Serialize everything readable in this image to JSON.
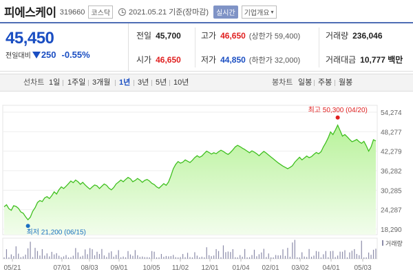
{
  "header": {
    "name": "피에스케이",
    "code": "319660",
    "market": "코스닥",
    "date": "2021.05.21 기준(장마감)",
    "realtime": "실시간",
    "company_info": "기업개요"
  },
  "quote": {
    "price": "45,450",
    "change_label": "전일대비",
    "change": "250",
    "change_pct": "-0.55%",
    "prev_close_label": "전일",
    "prev_close": "45,700",
    "high_label": "고가",
    "high": "46,650",
    "upper_limit": "(상한가 59,400)",
    "volume_label": "거래량",
    "volume": "236,046",
    "open_label": "시가",
    "open": "46,650",
    "low_label": "저가",
    "low": "44,850",
    "lower_limit": "(하한가 32,000)",
    "amount_label": "거래대금",
    "amount": "10,777 백만"
  },
  "tabs": {
    "line_chart_label": "선차트",
    "periods": [
      "1일",
      "1주일",
      "3개월",
      "1년",
      "3년",
      "5년",
      "10년"
    ],
    "active_period": "1년",
    "candle_label": "봉차트",
    "candles": [
      "일봉",
      "주봉",
      "월봉"
    ]
  },
  "colors": {
    "line": "#3fbf1f",
    "fill_top": "#b8f29a",
    "fill_bottom": "#f2fdec",
    "high_marker": "#e02020",
    "low_marker": "#1a6fc2",
    "volume_bar": "#8a8aa8"
  },
  "chart_data": {
    "type": "area",
    "yticks": [
      "54,274",
      "48,277",
      "42,279",
      "36,282",
      "30,285",
      "24,287",
      "18,290"
    ],
    "ylim": [
      18290,
      54274
    ],
    "xticks": [
      "05/21",
      "07/01",
      "08/03",
      "09/01",
      "10/05",
      "11/02",
      "12/01",
      "01/04",
      "02/01",
      "03/02",
      "04/01",
      "05/03"
    ],
    "high_annotation": "최고 50,300 (04/20)",
    "low_annotation": "최저 21,200 (06/15)",
    "volume_label": "거래량",
    "series": [
      {
        "values": [
          25200,
          25800,
          24600,
          24100,
          25500,
          25300,
          24700,
          23600,
          23200,
          22100,
          21200,
          22000,
          23800,
          24900,
          26500,
          27100,
          26800,
          27900,
          28300,
          27700,
          28600,
          29800,
          29100,
          30400,
          31300,
          30800,
          31500,
          32300,
          33100,
          32600,
          33400,
          32900,
          32100,
          32700,
          31900,
          31200,
          30600,
          31300,
          31900,
          31600,
          30800,
          31500,
          32200,
          31800,
          30900,
          30400,
          31100,
          32200,
          32800,
          33400,
          32900,
          33600,
          34200,
          33800,
          32900,
          33300,
          33900,
          33400,
          32700,
          33300,
          33600,
          33100,
          32400,
          32000,
          31300,
          30900,
          31600,
          32300,
          31800,
          32800,
          34700,
          36900,
          38200,
          39100,
          38600,
          38900,
          39600,
          39200,
          38800,
          39500,
          40300,
          40900,
          40400,
          40800,
          41600,
          42300,
          41900,
          41400,
          41800,
          41500,
          42100,
          42600,
          42200,
          41700,
          41300,
          41900,
          42700,
          43600,
          44100,
          43700,
          43200,
          42800,
          42300,
          41800,
          42400,
          42000,
          41500,
          40900,
          41600,
          42200,
          41700,
          41100,
          40500,
          39900,
          39300,
          38700,
          38200,
          37700,
          37300,
          36900,
          37300,
          37800,
          38900,
          39700,
          40400,
          39600,
          40200,
          40800,
          40300,
          40600,
          41300,
          41900,
          41500,
          42100,
          43600,
          44900,
          46400,
          48200,
          47400,
          48800,
          50300,
          48600,
          46900,
          47400,
          46700,
          45900,
          45200,
          45500,
          45900,
          45200,
          44700,
          45300,
          43900,
          42300,
          43600,
          45800,
          45450
        ]
      }
    ]
  }
}
